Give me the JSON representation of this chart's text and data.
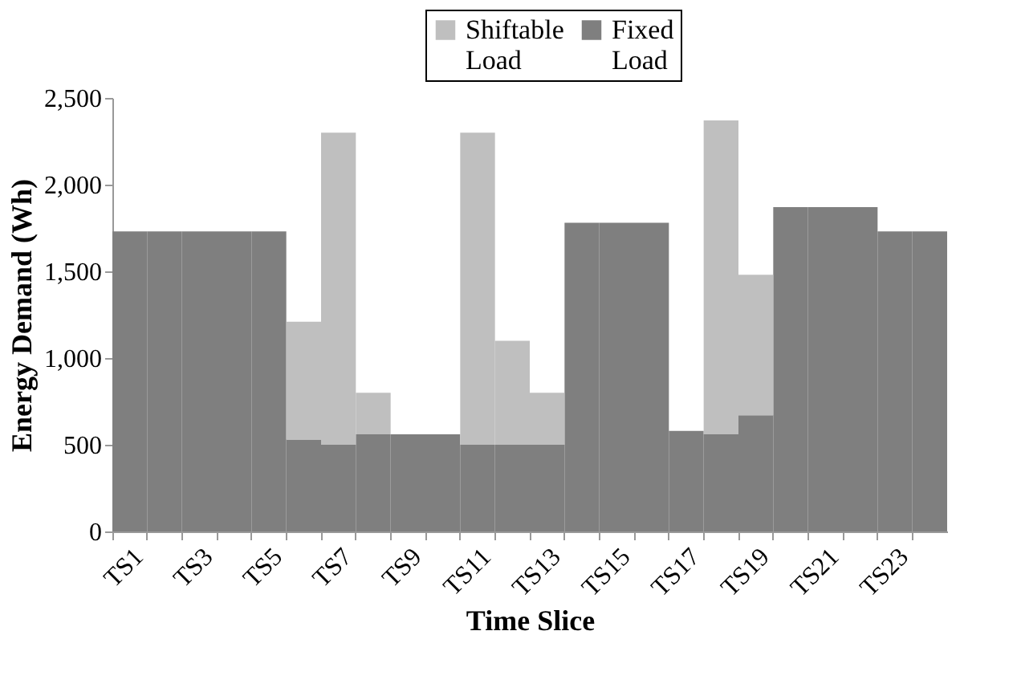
{
  "chart_data": {
    "type": "bar",
    "stacked": true,
    "xlabel": "Time Slice",
    "ylabel": "Energy Demand (Wh)",
    "categories": [
      "TS1",
      null,
      "TS3",
      null,
      "TS5",
      null,
      "TS7",
      null,
      "TS9",
      null,
      "TS11",
      null,
      "TS13",
      null,
      "TS15",
      null,
      "TS17",
      null,
      "TS19",
      null,
      "TS21",
      null,
      "TS23",
      null
    ],
    "series": [
      {
        "name": "Fixed Load",
        "color": "#7f7f7f",
        "values": [
          1730,
          1730,
          1730,
          1730,
          1730,
          530,
          500,
          560,
          560,
          560,
          500,
          500,
          500,
          1780,
          1780,
          1780,
          580,
          560,
          670,
          1870,
          1870,
          1870,
          1730,
          1730
        ]
      },
      {
        "name": "Shiftable Load",
        "color": "#bfbfbf",
        "values": [
          0,
          0,
          0,
          0,
          0,
          680,
          1800,
          240,
          0,
          0,
          1800,
          600,
          300,
          0,
          0,
          0,
          0,
          1810,
          810,
          0,
          0,
          0,
          0,
          0
        ]
      }
    ],
    "ylim": [
      0,
      2500
    ],
    "yticks": [
      0,
      {
        "value": 500,
        "label": "500"
      },
      {
        "value": 1000,
        "label": "1,000"
      },
      {
        "value": 1500,
        "label": "1,500"
      },
      {
        "value": 2000,
        "label": "2,000"
      },
      {
        "value": 2500,
        "label": "2,500"
      }
    ],
    "grid": false,
    "legend": "top"
  }
}
